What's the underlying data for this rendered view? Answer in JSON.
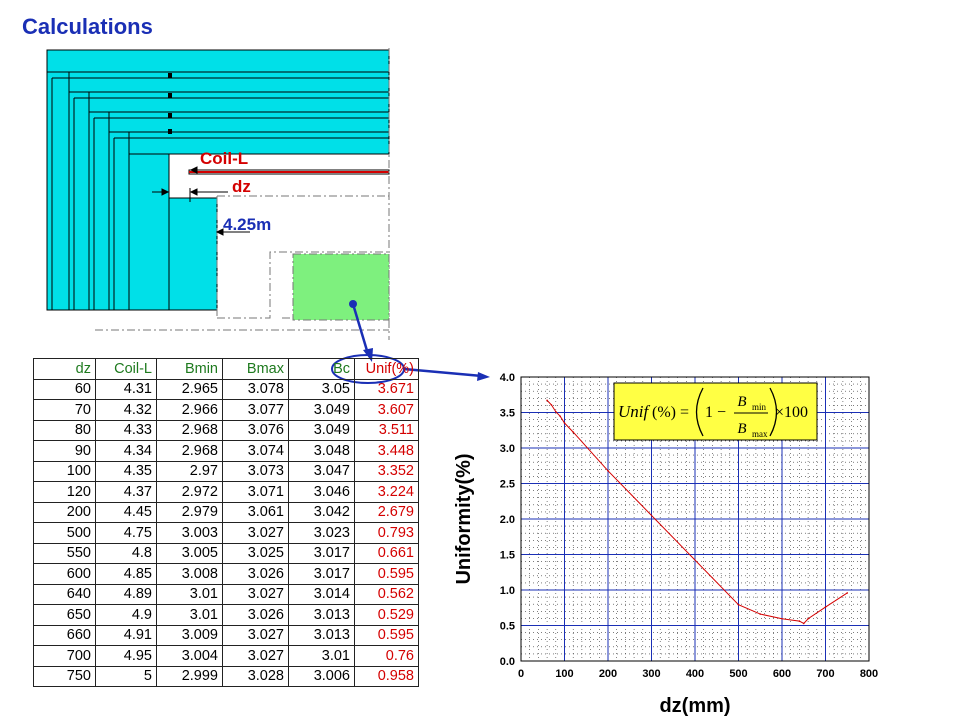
{
  "title": "Calculations",
  "diagram": {
    "coil_label": "Coil-L",
    "dz_label": "dz",
    "dist_label": "4.25m",
    "colors": {
      "coil": "#00e0e8",
      "block": "#7ef07e",
      "label_red": "#d40000",
      "label_blue": "#1a2fb5"
    }
  },
  "table": {
    "headers": [
      "dz",
      "Coil-L",
      "Bmin",
      "Bmax",
      "Bc",
      "Unif(%)"
    ],
    "rows": [
      [
        "60",
        "4.31",
        "2.965",
        "3.078",
        "3.05",
        "3.671"
      ],
      [
        "70",
        "4.32",
        "2.966",
        "3.077",
        "3.049",
        "3.607"
      ],
      [
        "80",
        "4.33",
        "2.968",
        "3.076",
        "3.049",
        "3.511"
      ],
      [
        "90",
        "4.34",
        "2.968",
        "3.074",
        "3.048",
        "3.448"
      ],
      [
        "100",
        "4.35",
        "2.97",
        "3.073",
        "3.047",
        "3.352"
      ],
      [
        "120",
        "4.37",
        "2.972",
        "3.071",
        "3.046",
        "3.224"
      ],
      [
        "200",
        "4.45",
        "2.979",
        "3.061",
        "3.042",
        "2.679"
      ],
      [
        "500",
        "4.75",
        "3.003",
        "3.027",
        "3.023",
        "0.793"
      ],
      [
        "550",
        "4.8",
        "3.005",
        "3.025",
        "3.017",
        "0.661"
      ],
      [
        "600",
        "4.85",
        "3.008",
        "3.026",
        "3.017",
        "0.595"
      ],
      [
        "640",
        "4.89",
        "3.01",
        "3.027",
        "3.014",
        "0.562"
      ],
      [
        "650",
        "4.9",
        "3.01",
        "3.026",
        "3.013",
        "0.529"
      ],
      [
        "660",
        "4.91",
        "3.009",
        "3.027",
        "3.013",
        "0.595"
      ],
      [
        "700",
        "4.95",
        "3.004",
        "3.027",
        "3.01",
        "0.76"
      ],
      [
        "750",
        "5",
        "2.999",
        "3.028",
        "3.006",
        "0.958"
      ]
    ]
  },
  "chart_data": {
    "type": "line",
    "xlabel": "dz(mm)",
    "ylabel": "Uniformity(%)",
    "xlim": [
      0,
      800
    ],
    "ylim": [
      0,
      4.0
    ],
    "x_ticks": [
      "0",
      "100",
      "200",
      "300",
      "400",
      "500",
      "600",
      "700",
      "800"
    ],
    "y_ticks": [
      "0.0",
      "0.5",
      "1.0",
      "1.5",
      "2.0",
      "2.5",
      "3.0",
      "3.5",
      "4.0"
    ],
    "series": [
      {
        "x": [
          60,
          70,
          80,
          90,
          100,
          120,
          200,
          500,
          550,
          600,
          640,
          650,
          660,
          700,
          750
        ],
        "y": [
          3.671,
          3.607,
          3.511,
          3.448,
          3.352,
          3.224,
          2.679,
          0.793,
          0.661,
          0.595,
          0.562,
          0.529,
          0.595,
          0.76,
          0.958
        ],
        "color": "#d40000"
      }
    ],
    "formula_box_color": "#ffff44",
    "grid": true
  }
}
